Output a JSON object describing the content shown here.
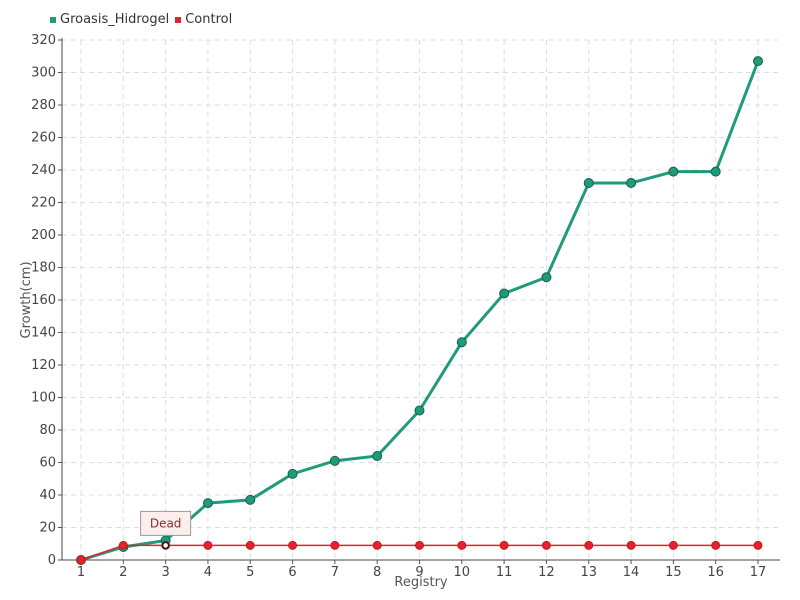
{
  "chart_data": {
    "type": "line",
    "title": "",
    "xlabel": "Registry",
    "ylabel": "Growth(cm)",
    "categories": [
      "1",
      "2",
      "3",
      "4",
      "5",
      "6",
      "7",
      "8",
      "9",
      "10",
      "11",
      "12",
      "13",
      "14",
      "15",
      "16",
      "17"
    ],
    "ylim": [
      0,
      320
    ],
    "ytick_step": 20,
    "grid": true,
    "legend_placement": "top-left",
    "series": [
      {
        "name": "Groasis_Hidrogel",
        "color": "#1f9a7a",
        "values": [
          0,
          8,
          12,
          35,
          37,
          53,
          61,
          64,
          92,
          134,
          164,
          174,
          232,
          232,
          239,
          239,
          307
        ]
      },
      {
        "name": "Control",
        "color": "#e8202a",
        "values": [
          0,
          9,
          9,
          9,
          9,
          9,
          9,
          9,
          9,
          9,
          9,
          9,
          9,
          9,
          9,
          9,
          9
        ]
      }
    ],
    "annotations": [
      {
        "text": "Dead",
        "x": "3",
        "y": 9
      }
    ]
  }
}
